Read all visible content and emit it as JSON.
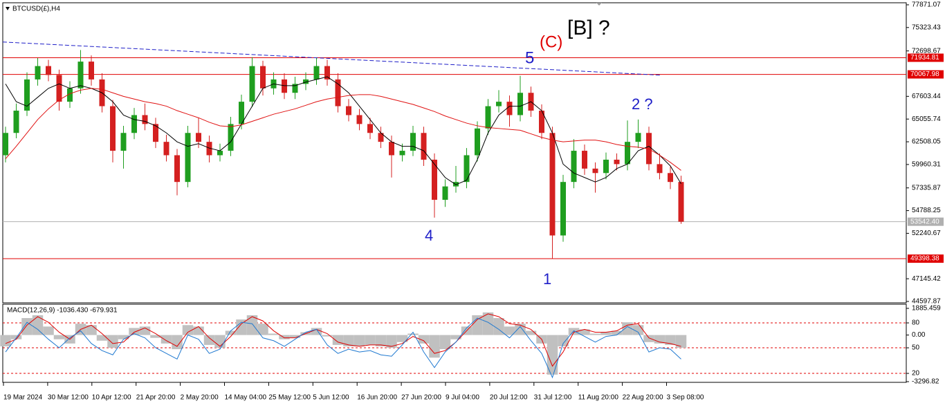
{
  "chart_data": [
    {
      "type": "candlestick",
      "title": "BTCUSD(£),H4",
      "up_color": "#1f9e1f",
      "down_color": "#d42020",
      "open": [
        61000,
        63500,
        66000,
        69500,
        71000,
        70000,
        67000,
        68500,
        71500,
        69500,
        66500,
        61500,
        63500,
        65500,
        64500,
        62500,
        61000,
        58000,
        63500,
        62500,
        61000,
        61500,
        64500,
        67000,
        71000,
        68500,
        69500,
        68000,
        69000,
        69500,
        71000,
        69500,
        66500,
        65500,
        64500,
        63500,
        62500,
        61000,
        61500,
        63500,
        60500,
        56000,
        57500,
        58000,
        61000,
        64000,
        66500,
        67000,
        65500,
        68000,
        66000,
        63500,
        52000,
        58000,
        61500,
        59500,
        59000,
        60500,
        60000,
        62500,
        63500,
        60000,
        59000,
        58000
      ],
      "high": [
        64200,
        66800,
        70300,
        71900,
        71700,
        70600,
        69300,
        72800,
        72200,
        70200,
        67200,
        64300,
        66300,
        66800,
        65200,
        63300,
        61700,
        64300,
        65200,
        63200,
        62300,
        65300,
        67800,
        72000,
        71600,
        70300,
        70200,
        69800,
        70300,
        71900,
        71700,
        70200,
        67300,
        66200,
        65200,
        64200,
        63200,
        62300,
        64300,
        64200,
        61200,
        58300,
        59800,
        61800,
        64800,
        67300,
        68300,
        67700,
        69900,
        68700,
        66700,
        64200,
        58800,
        62800,
        62200,
        60200,
        61300,
        61200,
        64900,
        65000,
        64200,
        61200,
        59700,
        58700
      ],
      "low": [
        60200,
        62900,
        65400,
        68800,
        69300,
        66000,
        66300,
        67900,
        68800,
        65800,
        60200,
        59500,
        62800,
        63800,
        61800,
        60300,
        56500,
        57400,
        61800,
        60200,
        60300,
        60900,
        63900,
        66400,
        67700,
        67800,
        67300,
        67300,
        68300,
        68900,
        68800,
        65800,
        64800,
        63800,
        62800,
        61800,
        58500,
        60300,
        60900,
        59800,
        54000,
        55200,
        56800,
        57300,
        60300,
        63300,
        65800,
        64200,
        64800,
        65300,
        62800,
        49400,
        51300,
        57300,
        58800,
        56800,
        58300,
        59300,
        59300,
        61800,
        59300,
        58300,
        57200,
        53300
      ],
      "close": [
        63500,
        66000,
        69500,
        71000,
        70000,
        67000,
        68500,
        71500,
        69500,
        66500,
        61500,
        63500,
        65500,
        64500,
        62500,
        61000,
        58000,
        63500,
        62500,
        61000,
        61500,
        64500,
        67000,
        71000,
        68500,
        69500,
        68000,
        69000,
        69500,
        71000,
        69500,
        66500,
        65500,
        64500,
        63500,
        62500,
        61000,
        61500,
        63500,
        60500,
        56000,
        57500,
        58000,
        61000,
        64000,
        66500,
        67000,
        65500,
        68000,
        66000,
        63500,
        52000,
        58000,
        61500,
        59500,
        59000,
        60500,
        60000,
        62500,
        63500,
        60000,
        59000,
        58000,
        53542.4
      ],
      "lines": [
        {
          "color": "#000000",
          "values": [
            69000,
            67000,
            66500,
            67500,
            68500,
            69000,
            68500,
            68800,
            68500,
            68000,
            67000,
            65500,
            65000,
            64800,
            64300,
            63500,
            62500,
            62000,
            62300,
            61800,
            61500,
            62500,
            64500,
            66500,
            68500,
            69000,
            68800,
            68800,
            69200,
            69500,
            69800,
            69000,
            68000,
            66500,
            65000,
            63500,
            62500,
            62000,
            62000,
            61500,
            60000,
            58500,
            57700,
            58200,
            60500,
            63500,
            65500,
            66500,
            66500,
            67000,
            66000,
            63500,
            60000,
            59000,
            58500,
            58000,
            58500,
            59500,
            60000,
            61500,
            62000,
            61000,
            59800,
            57800
          ]
        },
        {
          "color": "#e01010",
          "values": [
            60600,
            62000,
            63500,
            65000,
            66200,
            67200,
            67900,
            68300,
            68500,
            68400,
            68000,
            67600,
            67300,
            67000,
            66800,
            66500,
            66000,
            65600,
            65200,
            64700,
            64300,
            64200,
            64400,
            64800,
            65200,
            65600,
            65900,
            66200,
            66600,
            67000,
            67300,
            67500,
            67700,
            67800,
            67800,
            67600,
            67300,
            67000,
            66700,
            66300,
            65900,
            65400,
            65000,
            64600,
            64300,
            64100,
            64000,
            63900,
            63800,
            63400,
            63000,
            62700,
            62500,
            62600,
            62700,
            62700,
            62500,
            62200,
            62000,
            61900,
            61700,
            61000,
            60200,
            59300
          ]
        }
      ],
      "trendline": {
        "color": "#1e1ec8",
        "values": [
          73700,
          69980
        ]
      },
      "hlines": [
        {
          "value": 71934.81,
          "color": "#e00000"
        },
        {
          "value": 70067.98,
          "color": "#e00000"
        },
        {
          "value": 53542.4,
          "label": "53542.40",
          "color": "#b0b0b0"
        },
        {
          "value": 49398.38,
          "color": "#e00000"
        }
      ],
      "ylim": [
        44520,
        78100
      ],
      "yticks": [
        77871.07,
        75323.43,
        72698.67,
        67603.44,
        65055.74,
        62508.05,
        59960.31,
        57335.87,
        54788.25,
        52240.67,
        47145.42,
        44597.87
      ],
      "annotations": [
        {
          "text": "[B] ?",
          "color": "#000000"
        },
        {
          "text": "(C)",
          "color": "#e00000"
        },
        {
          "text": "5",
          "color": "#1e1ec8"
        },
        {
          "text": "2 ?",
          "color": "#1e1ec8"
        },
        {
          "text": "4",
          "color": "#1e1ec8"
        },
        {
          "text": "1",
          "color": "#1e1ec8"
        }
      ],
      "x_labels": [
        "19 Mar 2024",
        "30 Mar 12:00",
        "10 Apr 12:00",
        "21 Apr 20:00",
        "2 May 20:00",
        "14 May 04:00",
        "25 May 12:00",
        "5 Jun 12:00",
        "16 Jun 20:00",
        "27 Jun 20:00",
        "9 Jul 04:00",
        "20 Jul 12:00",
        "31 Jul 12:00",
        "11 Aug 20:00",
        "22 Aug 20:00",
        "3 Sep 08:00"
      ]
    },
    {
      "type": "macd",
      "title": "MACD(12,26,9) -1036.430 -679.931",
      "series": [
        {
          "kind": "histogram",
          "color": "#c0c0c0",
          "values": [
            -800,
            -300,
            1200,
            1400,
            600,
            -300,
            -600,
            800,
            700,
            -400,
            -900,
            -300,
            500,
            600,
            -200,
            -600,
            -1000,
            700,
            600,
            -700,
            -900,
            300,
            1100,
            1400,
            800,
            100,
            -300,
            -200,
            200,
            500,
            -100,
            -700,
            -800,
            -800,
            -700,
            -800,
            -900,
            -500,
            100,
            -600,
            -1600,
            -1000,
            -300,
            600,
            1400,
            1600,
            1200,
            600,
            800,
            300,
            -600,
            -2800,
            -800,
            500,
            400,
            100,
            200,
            300,
            900,
            700,
            -500,
            -600,
            -700,
            -900
          ]
        },
        {
          "kind": "line",
          "color": "#e00000",
          "values": [
            -600,
            -300,
            700,
            1300,
            900,
            200,
            -300,
            400,
            700,
            100,
            -600,
            -500,
            200,
            500,
            100,
            -400,
            -800,
            200,
            600,
            -200,
            -800,
            -100,
            800,
            1300,
            1000,
            300,
            -200,
            -200,
            100,
            400,
            100,
            -500,
            -700,
            -800,
            -700,
            -700,
            -800,
            -600,
            -100,
            -400,
            -1300,
            -1100,
            -500,
            300,
            1100,
            1500,
            1300,
            800,
            700,
            400,
            -300,
            -2200,
            -1200,
            200,
            400,
            200,
            200,
            300,
            700,
            800,
            -200,
            -500,
            -600,
            -800
          ]
        },
        {
          "kind": "line",
          "color": "#1e78d0",
          "values": [
            -1200,
            -200,
            900,
            400,
            -300,
            -900,
            -200,
            300,
            -600,
            -1100,
            -1400,
            -300,
            100,
            -200,
            -900,
            -1300,
            -1700,
            0,
            -300,
            -1300,
            -1000,
            300,
            900,
            800,
            -200,
            -400,
            -800,
            -300,
            200,
            400,
            -700,
            -1300,
            -1000,
            -1200,
            -1100,
            -1400,
            -1500,
            -700,
            200,
            -1200,
            -2300,
            -1200,
            -500,
            500,
            1200,
            900,
            400,
            -200,
            600,
            -400,
            -1300,
            -3000,
            -600,
            300,
            -100,
            -500,
            -100,
            0,
            600,
            200,
            -1200,
            -900,
            -1000,
            -1700
          ]
        }
      ],
      "ylim": [
        -3296.82,
        1885.459
      ],
      "yticks": [
        1885.459,
        {
          "value": 858,
          "label": "80",
          "level": true
        },
        {
          "value": 0,
          "label": "0.00"
        },
        {
          "value": -904,
          "label": "50",
          "level": true
        },
        {
          "value": -2713,
          "label": "20",
          "level": true
        },
        -3296.82
      ]
    }
  ]
}
